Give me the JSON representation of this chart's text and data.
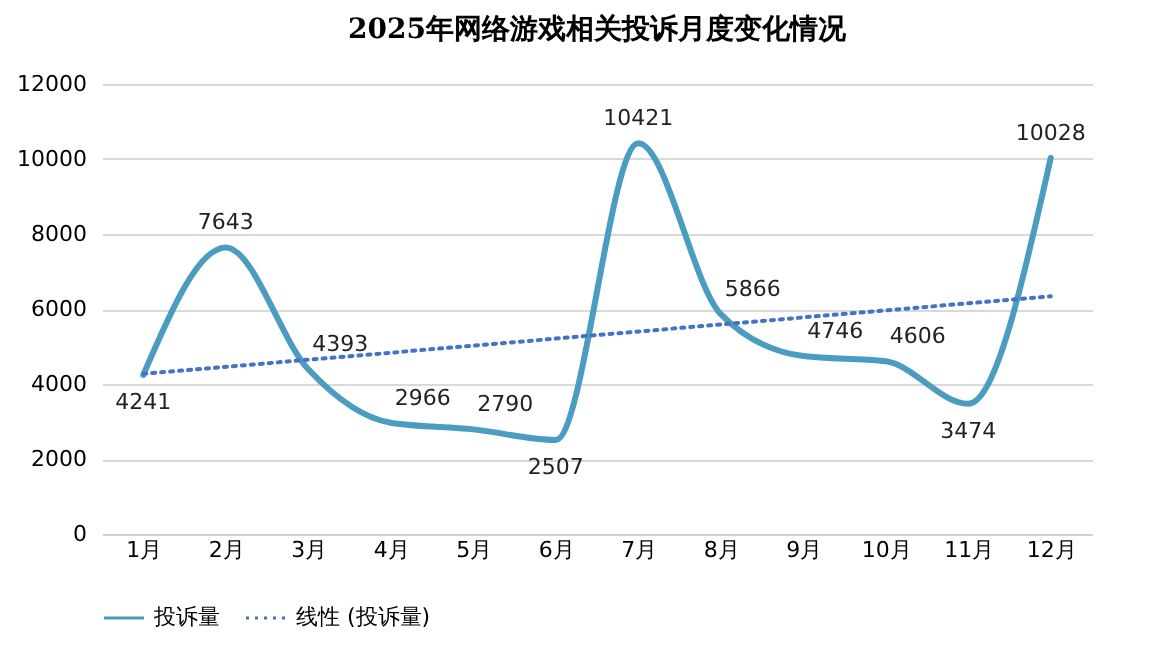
{
  "chart_data": {
    "type": "line",
    "title": "2025年网络游戏相关投诉月度变化情况",
    "categories": [
      "1月",
      "2月",
      "3月",
      "4月",
      "5月",
      "6月",
      "7月",
      "8月",
      "9月",
      "10月",
      "11月",
      "12月"
    ],
    "series": [
      {
        "name": "投诉量",
        "color": "#4a9cc0",
        "line_style": "solid",
        "values": [
          4241,
          7643,
          4393,
          2966,
          2790,
          2507,
          10421,
          5866,
          4746,
          4606,
          3474,
          10028
        ],
        "value_labels": [
          "4241",
          "7643",
          "4393",
          "2966",
          "2790",
          "2507",
          "10421",
          "5866",
          "4746",
          "4606",
          "3474",
          "10028"
        ]
      },
      {
        "name": "线性 (投诉量)",
        "color": "#4472c4",
        "line_style": "dotted",
        "x": [
          "1月",
          "12月"
        ],
        "values": [
          4270,
          6340
        ]
      }
    ],
    "ylim": [
      0,
      12000
    ],
    "yticks": [
      0,
      2000,
      4000,
      6000,
      8000,
      10000,
      12000
    ],
    "grid": "y",
    "legend": "bottom"
  }
}
